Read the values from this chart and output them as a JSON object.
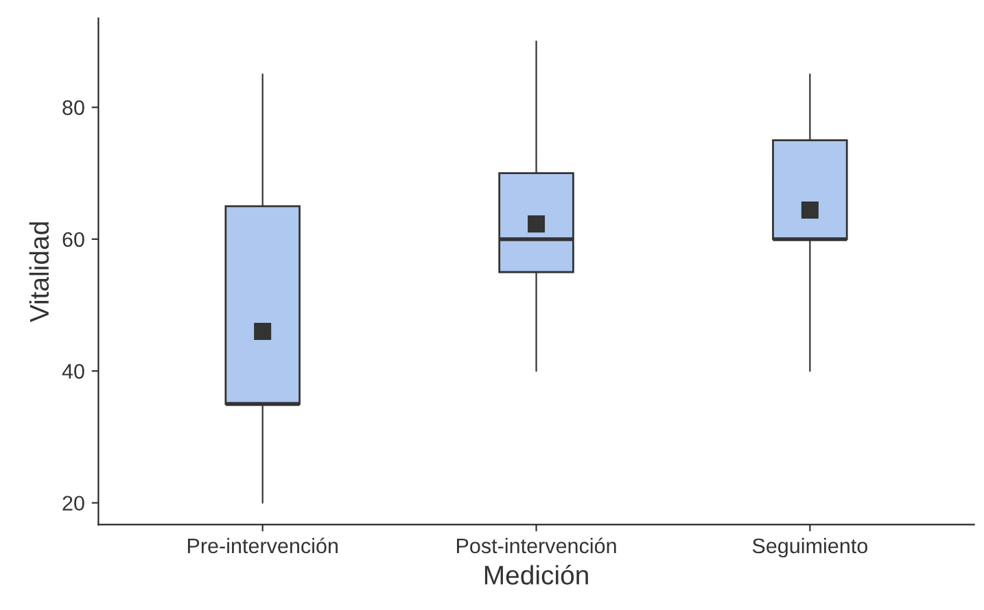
{
  "chart_data": {
    "type": "box",
    "xlabel": "Medición",
    "ylabel": "Vitalidad",
    "categories": [
      "Pre-intervención",
      "Post-intervención",
      "Seguimiento"
    ],
    "boxes": [
      {
        "low": 20,
        "q1": 35,
        "median": 35,
        "q3": 65,
        "high": 85,
        "mean": 46
      },
      {
        "low": 40,
        "q1": 55,
        "median": 60,
        "q3": 70,
        "high": 90,
        "mean": 62.3
      },
      {
        "low": 40,
        "q1": 60,
        "median": 60,
        "q3": 75,
        "high": 85,
        "mean": 64.4
      }
    ],
    "color": "#aec8f0",
    "ylim": [
      16.7,
      93.5
    ],
    "yticks": [
      20,
      40,
      60,
      80
    ],
    "grid": false,
    "marker": "square"
  }
}
